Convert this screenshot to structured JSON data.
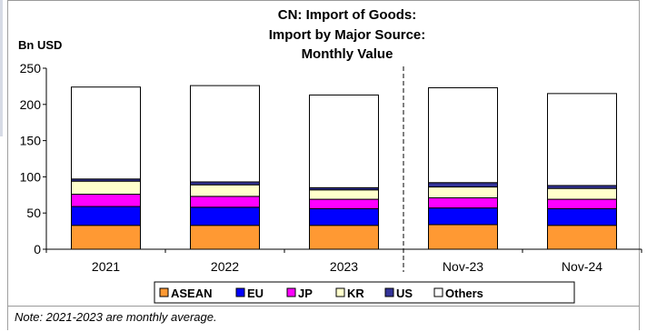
{
  "chart_data": {
    "type": "bar",
    "stacked": true,
    "title": [
      "CN: Import of Goods:",
      "Import by Major Source:",
      "Monthly Value"
    ],
    "ylabel": "Bn USD",
    "ylim": [
      0,
      250
    ],
    "yticks": [
      0,
      50,
      100,
      150,
      200,
      250
    ],
    "grid": false,
    "legend_position": "bottom",
    "categories": [
      "2021",
      "2022",
      "2023",
      "Nov-23",
      "Nov-24"
    ],
    "series": [
      {
        "name": "ASEAN",
        "color": "#ff9933",
        "values": [
          33,
          33,
          33,
          34,
          33
        ]
      },
      {
        "name": "EU",
        "color": "#0000ff",
        "values": [
          26,
          25,
          23,
          23,
          23
        ]
      },
      {
        "name": "JP",
        "color": "#ff00ff",
        "values": [
          17,
          15,
          13,
          14,
          13
        ]
      },
      {
        "name": "KR",
        "color": "#ffffcc",
        "values": [
          18,
          16,
          13,
          15,
          15
        ]
      },
      {
        "name": "US",
        "color": "#333399",
        "values": [
          3,
          4,
          3,
          6,
          4
        ]
      },
      {
        "name": "Others",
        "color": "#ffffff",
        "values": [
          127,
          133,
          128,
          131,
          127
        ]
      }
    ],
    "divider_after_category": "2023",
    "note": "Note: 2021-2023 are monthly average."
  }
}
